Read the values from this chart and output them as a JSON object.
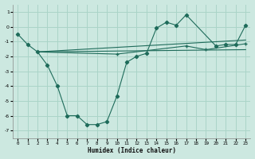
{
  "xlabel": "Humidex (Indice chaleur)",
  "xlim": [
    -0.5,
    23.5
  ],
  "ylim": [
    -7.5,
    1.5
  ],
  "yticks": [
    -7,
    -6,
    -5,
    -4,
    -3,
    -2,
    -1,
    0,
    1
  ],
  "xticks": [
    0,
    1,
    2,
    3,
    4,
    5,
    6,
    7,
    8,
    9,
    10,
    11,
    12,
    13,
    14,
    15,
    16,
    17,
    18,
    19,
    20,
    21,
    22,
    23
  ],
  "bg_color": "#cce8e0",
  "grid_color": "#aad4c8",
  "line_color": "#1e6b5a",
  "line1_x": [
    0,
    1,
    2,
    3,
    4,
    5,
    6,
    7,
    8,
    9,
    10,
    11,
    12,
    13,
    14,
    15,
    16,
    17,
    20,
    21,
    22,
    23
  ],
  "line1_y": [
    -0.5,
    -1.2,
    -1.7,
    -2.6,
    -4.0,
    -6.0,
    -6.0,
    -6.6,
    -6.6,
    -6.4,
    -4.7,
    -2.4,
    -2.0,
    -1.8,
    -0.1,
    0.3,
    0.1,
    0.8,
    -1.3,
    -1.2,
    -1.2,
    0.1
  ],
  "line2_x": [
    2,
    23
  ],
  "line2_y": [
    -1.7,
    -0.9
  ],
  "line3_x": [
    2,
    23
  ],
  "line3_y": [
    -1.7,
    -1.55
  ],
  "line4_x": [
    2,
    10,
    17,
    19,
    23
  ],
  "line4_y": [
    -1.7,
    -1.85,
    -1.3,
    -1.55,
    -1.15
  ]
}
